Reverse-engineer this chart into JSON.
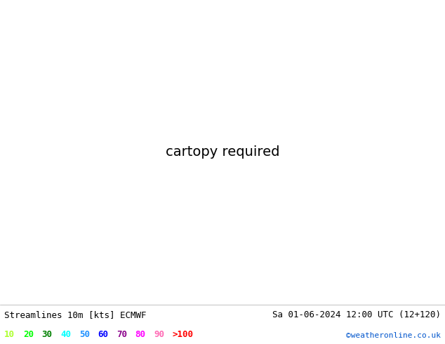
{
  "title_left": "Streamlines 10m [kts] ECMWF",
  "title_right": "Sa 01-06-2024 12:00 UTC (12+120)",
  "credit": "©weatheronline.co.uk",
  "legend_values": [
    "10",
    "20",
    "30",
    "40",
    "50",
    "60",
    "70",
    "80",
    "90",
    ">100"
  ],
  "legend_colors": [
    "#adff2f",
    "#00ff00",
    "#008000",
    "#00ffff",
    "#1e90ff",
    "#0000ff",
    "#8b008b",
    "#ff00ff",
    "#ff69b4",
    "#ff0000"
  ],
  "bg_color_ocean": "#d8d8d8",
  "bg_color_land": "#c8f0a0",
  "bg_color_water_bodies": "#d8d8d8",
  "border_color": "#111111",
  "bottom_bar_color": "#ffffff",
  "fig_width": 6.34,
  "fig_height": 4.9,
  "dpi": 100,
  "font_size_title": 9,
  "font_size_legend": 9,
  "font_size_credit": 8,
  "lon_min": 2.0,
  "lon_max": 32.0,
  "lat_min": 54.0,
  "lat_max": 72.0,
  "streamline_density": 3,
  "ocean_stream_color": "#66dd00",
  "land_stream_color": "#ffaa00",
  "strong_stream_color": "#00cc00"
}
